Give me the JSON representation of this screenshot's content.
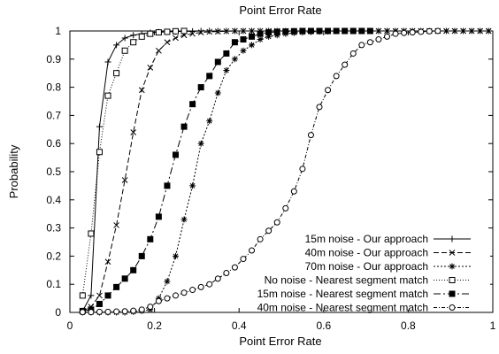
{
  "chart_data": {
    "type": "line",
    "title": "Point Error Rate",
    "xlabel": "Point Error Rate",
    "ylabel": "Probability",
    "xlim": [
      0,
      1
    ],
    "ylim": [
      0,
      1
    ],
    "xticks": [
      "0",
      "0.2",
      "0.4",
      "0.6",
      "0.8",
      "1"
    ],
    "yticks": [
      "0",
      "0.1",
      "0.2",
      "0.3",
      "0.4",
      "0.5",
      "0.6",
      "0.7",
      "0.8",
      "0.9",
      "1"
    ],
    "grid": false,
    "legend_position": "bottom-right",
    "series": [
      {
        "name": "15m noise - Our approach",
        "marker": "plus",
        "dash": "",
        "x": [
          0.03,
          0.05,
          0.07,
          0.09,
          0.11,
          0.13,
          0.15,
          0.17,
          0.19,
          0.21,
          0.23,
          0.25,
          0.27,
          0.29,
          0.31,
          0.33,
          0.35,
          0.37,
          0.39,
          0.41,
          0.43,
          0.45,
          0.47,
          0.49,
          0.51,
          0.53,
          0.55,
          0.57,
          0.59,
          0.61,
          0.63,
          0.65,
          0.67,
          0.69,
          0.71,
          0.73
        ],
        "y": [
          0.005,
          0.06,
          0.66,
          0.89,
          0.95,
          0.975,
          0.985,
          0.99,
          0.994,
          0.996,
          0.997,
          0.998,
          0.999,
          0.999,
          1,
          1,
          1,
          1,
          1,
          1,
          1,
          1,
          1,
          1,
          1,
          1,
          1,
          1,
          1,
          1,
          1,
          1,
          1,
          1,
          1,
          1
        ]
      },
      {
        "name": "40m noise - Our approach",
        "marker": "x",
        "dash": "6,3",
        "x": [
          0.03,
          0.05,
          0.07,
          0.09,
          0.11,
          0.13,
          0.15,
          0.17,
          0.19,
          0.21,
          0.23,
          0.25,
          0.27,
          0.29,
          0.31,
          0.33,
          0.35,
          0.37,
          0.39,
          0.41,
          0.43,
          0.45,
          0.47,
          0.49,
          0.51,
          0.53,
          0.55,
          0.57,
          0.59,
          0.61,
          0.63,
          0.65,
          0.67,
          0.69,
          0.71,
          0.73,
          0.75,
          0.77,
          0.79,
          0.81,
          0.83,
          0.85,
          0.87,
          0.89,
          0.91,
          0.93,
          0.95,
          0.97,
          0.99
        ],
        "y": [
          0.005,
          0.02,
          0.06,
          0.18,
          0.31,
          0.47,
          0.64,
          0.79,
          0.87,
          0.93,
          0.96,
          0.975,
          0.985,
          0.99,
          0.995,
          0.997,
          0.998,
          0.999,
          1,
          1,
          1,
          1,
          1,
          1,
          1,
          1,
          1,
          1,
          1,
          1,
          1,
          1,
          1,
          1,
          1,
          1,
          1,
          1,
          1,
          1,
          1,
          1,
          1,
          1,
          1,
          1,
          1,
          1,
          1
        ]
      },
      {
        "name": "70m noise - Our approach",
        "marker": "star",
        "dash": "2,2",
        "x": [
          0.03,
          0.05,
          0.07,
          0.09,
          0.11,
          0.13,
          0.15,
          0.17,
          0.19,
          0.21,
          0.23,
          0.25,
          0.27,
          0.29,
          0.31,
          0.33,
          0.35,
          0.37,
          0.39,
          0.41,
          0.43,
          0.45,
          0.47,
          0.49,
          0.51,
          0.53,
          0.55,
          0.57,
          0.59,
          0.61,
          0.63,
          0.65,
          0.67,
          0.69,
          0.71,
          0.73,
          0.75,
          0.77,
          0.79,
          0.81,
          0.83,
          0.85,
          0.87,
          0.89,
          0.91,
          0.93,
          0.95,
          0.97,
          0.99
        ],
        "y": [
          0,
          0,
          0,
          0,
          0,
          0,
          0.002,
          0.005,
          0.01,
          0.05,
          0.11,
          0.2,
          0.33,
          0.45,
          0.6,
          0.68,
          0.78,
          0.86,
          0.9,
          0.93,
          0.95,
          0.97,
          0.98,
          0.985,
          0.99,
          0.993,
          0.995,
          0.997,
          0.998,
          0.999,
          1,
          1,
          1,
          1,
          1,
          1,
          1,
          1,
          1,
          1,
          1,
          1,
          1,
          1,
          1,
          1,
          1,
          1,
          1
        ]
      },
      {
        "name": "No noise - Nearest segment match",
        "marker": "square-open",
        "dash": "1,2",
        "x": [
          0.03,
          0.05,
          0.07,
          0.09,
          0.11,
          0.13,
          0.15,
          0.17,
          0.19,
          0.21,
          0.23,
          0.25,
          0.27
        ],
        "y": [
          0.06,
          0.28,
          0.57,
          0.77,
          0.85,
          0.93,
          0.96,
          0.98,
          0.99,
          0.995,
          0.997,
          0.999,
          1
        ]
      },
      {
        "name": "15m noise - Nearest segment match",
        "marker": "square-filled",
        "dash": "8,3,2,3",
        "x": [
          0.03,
          0.05,
          0.07,
          0.09,
          0.11,
          0.13,
          0.15,
          0.17,
          0.19,
          0.21,
          0.23,
          0.25,
          0.27,
          0.29,
          0.31,
          0.33,
          0.35,
          0.37,
          0.39,
          0.41,
          0.43,
          0.45,
          0.47,
          0.49,
          0.51,
          0.53,
          0.55,
          0.57,
          0.59,
          0.61,
          0.63,
          0.65,
          0.67,
          0.69,
          0.71
        ],
        "y": [
          0.005,
          0.01,
          0.03,
          0.06,
          0.09,
          0.12,
          0.15,
          0.2,
          0.26,
          0.34,
          0.45,
          0.56,
          0.66,
          0.74,
          0.8,
          0.84,
          0.89,
          0.92,
          0.96,
          0.97,
          0.98,
          0.99,
          0.995,
          0.997,
          0.998,
          0.999,
          1,
          1,
          1,
          1,
          1,
          1,
          1,
          1,
          1
        ]
      },
      {
        "name": "40m noise - Nearest segment match",
        "marker": "circle-open",
        "dash": "4,2,1,2",
        "x": [
          0.03,
          0.05,
          0.07,
          0.09,
          0.11,
          0.13,
          0.15,
          0.17,
          0.19,
          0.21,
          0.23,
          0.25,
          0.27,
          0.29,
          0.31,
          0.33,
          0.35,
          0.37,
          0.39,
          0.41,
          0.43,
          0.45,
          0.47,
          0.49,
          0.51,
          0.53,
          0.55,
          0.57,
          0.59,
          0.61,
          0.63,
          0.65,
          0.67,
          0.69,
          0.71,
          0.73,
          0.75,
          0.77,
          0.79,
          0.81,
          0.83,
          0.85,
          0.87
        ],
        "y": [
          0.001,
          0.001,
          0.002,
          0.002,
          0.003,
          0.004,
          0.006,
          0.01,
          0.02,
          0.04,
          0.05,
          0.06,
          0.07,
          0.08,
          0.09,
          0.1,
          0.12,
          0.14,
          0.16,
          0.19,
          0.22,
          0.26,
          0.29,
          0.32,
          0.37,
          0.43,
          0.51,
          0.63,
          0.73,
          0.79,
          0.84,
          0.88,
          0.92,
          0.95,
          0.96,
          0.97,
          0.98,
          0.99,
          0.993,
          0.995,
          0.997,
          0.999,
          1
        ]
      }
    ]
  }
}
